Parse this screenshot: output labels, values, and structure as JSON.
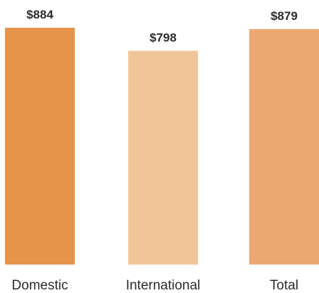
{
  "chart_data": {
    "type": "bar",
    "categories": [
      "Domestic",
      "International",
      "Total"
    ],
    "values": [
      884,
      798,
      879
    ],
    "value_labels": [
      "$884",
      "$798",
      "$879"
    ],
    "colors": [
      "#E5944A",
      "#F0C699",
      "#EBA971"
    ],
    "title": "",
    "xlabel": "",
    "ylabel": "",
    "ylim": [
      0,
      884
    ],
    "grid": false,
    "legend": "none"
  }
}
